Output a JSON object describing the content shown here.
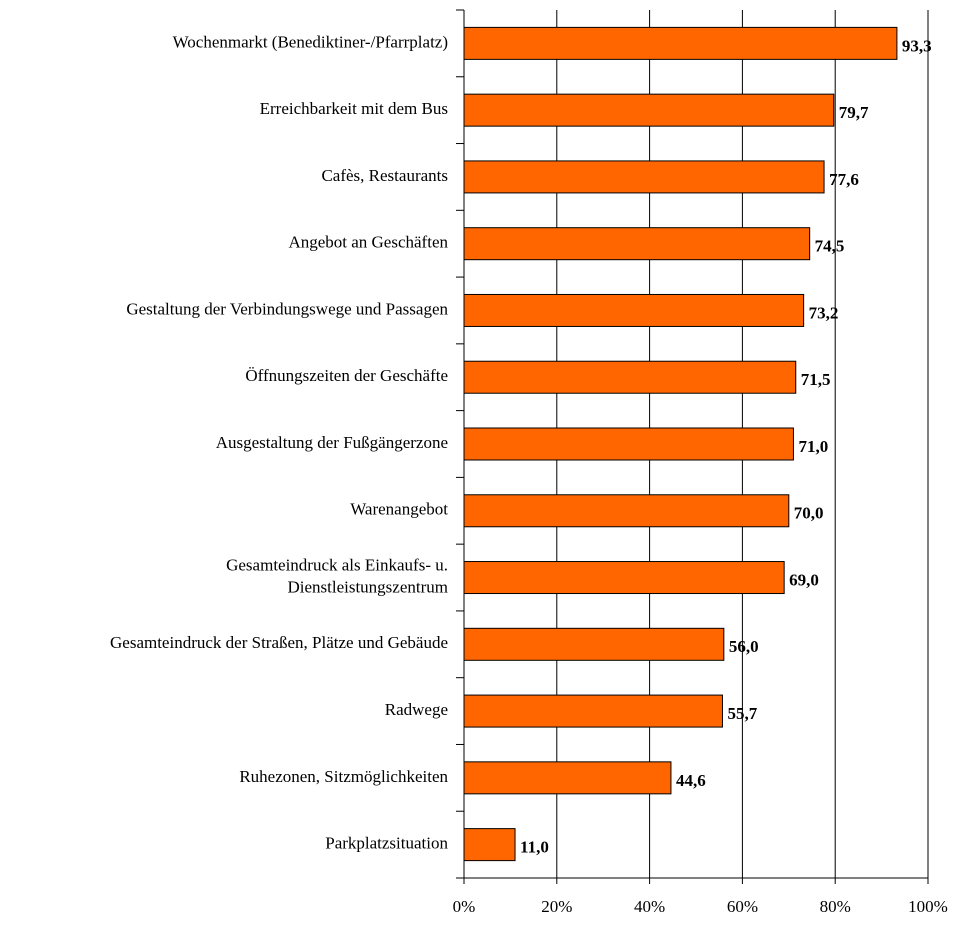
{
  "chart_data": {
    "type": "barh",
    "categories": [
      "Wochenmarkt (Benediktiner-/Pfarrplatz)",
      "Erreichbarkeit mit dem Bus",
      "Cafès, Restaurants",
      "Angebot an Geschäften",
      "Gestaltung der Verbindungswege und Passagen",
      "Öffnungszeiten der Geschäfte",
      "Ausgestaltung der Fußgängerzone",
      "Warenangebot",
      "Gesamteindruck als Einkaufs- u.\nDienstleistungszentrum",
      "Gesamteindruck der Straßen, Plätze und Gebäude",
      "Radwege",
      "Ruhezonen, Sitzmöglichkeiten",
      "Parkplatzsituation"
    ],
    "values": [
      93.3,
      79.7,
      77.6,
      74.5,
      73.2,
      71.5,
      71.0,
      70.0,
      69.0,
      56.0,
      55.7,
      44.6,
      11.0
    ],
    "value_labels": [
      "93,3",
      "79,7",
      "77,6",
      "74,5",
      "73,2",
      "71,5",
      "71,0",
      "70,0",
      "69,0",
      "56,0",
      "55,7",
      "44,6",
      "11,0"
    ],
    "color": "#ff6600",
    "xlim": [
      0,
      100
    ],
    "xticks": [
      {
        "value": 0,
        "label": "0%"
      },
      {
        "value": 20,
        "label": "20%"
      },
      {
        "value": 40,
        "label": "40%"
      },
      {
        "value": 60,
        "label": "60%"
      },
      {
        "value": 80,
        "label": "80%"
      },
      {
        "value": 100,
        "label": "100%"
      }
    ],
    "grid": true
  }
}
